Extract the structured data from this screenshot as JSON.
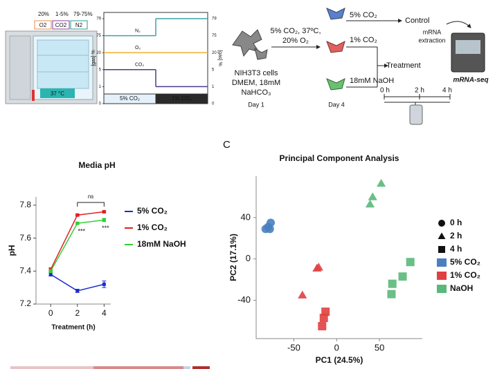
{
  "figure_label_c": "C",
  "incubator": {
    "percent_labels": [
      "20%",
      "1-5%",
      "79-75%"
    ],
    "percent_colors": [
      "#e8894a",
      "#8a3aa0",
      "#2a9a8a"
    ],
    "gas_labels": [
      "O2",
      "CO2",
      "N2"
    ],
    "temperature": "37 °C"
  },
  "workflow": {
    "cells": [
      "NIH3T3 cells",
      "DMEM, 18mM",
      "NaHCO₃"
    ],
    "day1": "Day 1",
    "culture": [
      "5% CO₂, 37ºC,",
      "20% O₂"
    ],
    "day4": "Day 4",
    "branches": [
      "5% CO₂",
      "1% CO₂",
      "18mM NaOH"
    ],
    "control": "Control",
    "treatment": "Treatment",
    "times": [
      "0 h",
      "2 h",
      "4 h"
    ],
    "extraction": [
      "mRNA",
      "extraction"
    ],
    "seq": "mRNA-seq"
  },
  "chart_data": [
    {
      "type": "step",
      "ylabel": "[gas] %",
      "categories": [
        "5% CO₂",
        "1% CO₂"
      ],
      "category_colors": [
        "#e4f0fa",
        "#2a2a2a"
      ],
      "series": [
        {
          "name": "N₂",
          "color": "#3aa3a0",
          "values": [
            75,
            79
          ]
        },
        {
          "name": "O₂",
          "color": "#f0b030",
          "values": [
            20,
            20
          ]
        },
        {
          "name": "CO₂",
          "color": "#4a3a8a",
          "values": [
            5,
            1
          ]
        }
      ],
      "ylim": [
        0,
        79
      ],
      "yticks": [
        0,
        1,
        5,
        20,
        75,
        79
      ],
      "y_scale": "tick-spaced"
    },
    {
      "type": "line",
      "title": "Media pH",
      "xlabel": "Treatment (h)",
      "ylabel": "pH",
      "x": [
        0,
        2,
        4
      ],
      "xlim": [
        -1.1,
        4.5
      ],
      "xticks": [
        0,
        2,
        4
      ],
      "ylim": [
        7.2,
        7.85
      ],
      "yticks": [
        7.2,
        7.4,
        7.6,
        7.8
      ],
      "legend": "right",
      "series": [
        {
          "name": "5% CO₂",
          "color": "#1a2ad0",
          "values": [
            7.38,
            7.28,
            7.32
          ],
          "errors": [
            0.01,
            0.01,
            0.02
          ]
        },
        {
          "name": "1% CO₂",
          "color": "#e02020",
          "values": [
            7.41,
            7.74,
            7.76
          ],
          "errors": [
            0.01,
            0.005,
            0.005
          ]
        },
        {
          "name": "18mM NaOH",
          "color": "#30d030",
          "values": [
            7.4,
            7.69,
            7.71
          ],
          "errors": [
            0.01,
            0.005,
            0.01
          ]
        }
      ],
      "annotations": [
        "ns",
        "***",
        "***"
      ]
    },
    {
      "type": "scatter",
      "title": "Principal Component Analysis",
      "xlabel": "PC1 (24.5%)",
      "ylabel": "PC2 (17.1%)",
      "xlim": [
        -94,
        100
      ],
      "xticks": [
        -50,
        0,
        50
      ],
      "ylim": [
        -77,
        80
      ],
      "yticks": [
        -40,
        0,
        40
      ],
      "shape_legend": {
        "names": [
          "0 h",
          "2 h",
          "4 h"
        ],
        "shapes": [
          "circle",
          "triangle",
          "square"
        ]
      },
      "series": [
        {
          "name": "5% CO₂",
          "color": "#4a7fc0",
          "x": [
            -80,
            -77,
            -83,
            -78
          ],
          "y": [
            31,
            35,
            29,
            29
          ],
          "shapes": [
            "circle",
            "circle",
            "circle",
            "circle"
          ]
        },
        {
          "name": "1% CO₂",
          "color": "#e04040",
          "x": [
            -21,
            -23,
            -40,
            -13,
            -15,
            -17
          ],
          "y": [
            -8,
            -9,
            -35,
            -51,
            -57,
            -65
          ],
          "shapes": [
            "triangle",
            "triangle",
            "triangle",
            "square",
            "square",
            "square"
          ]
        },
        {
          "name": "NaOH",
          "color": "#5ab87a",
          "x": [
            52,
            42,
            39,
            86,
            77,
            65,
            64
          ],
          "y": [
            73,
            60,
            53,
            -3,
            -17,
            -24,
            -34
          ],
          "shapes": [
            "triangle",
            "triangle",
            "triangle",
            "square",
            "square",
            "square",
            "square"
          ]
        }
      ]
    }
  ]
}
